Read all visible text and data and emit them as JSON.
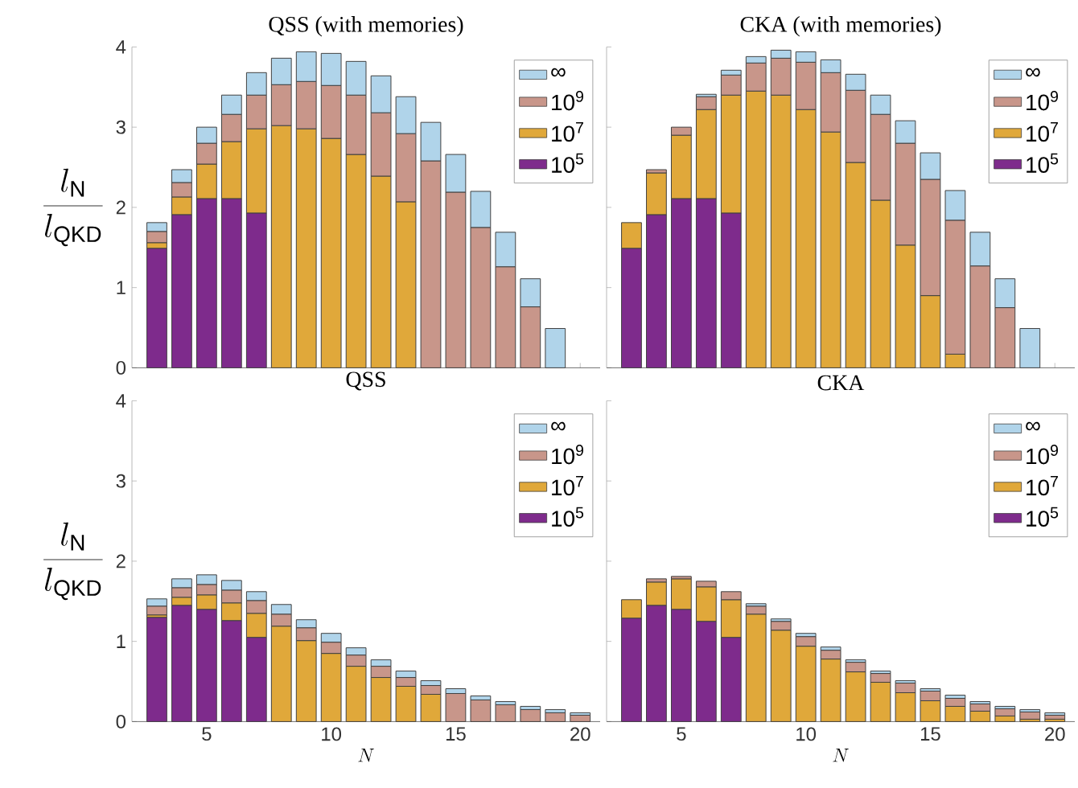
{
  "chart_data": [
    {
      "type": "bar",
      "stacked": true,
      "title": "QSS (with memories)",
      "ylabel": "\\frac{l_{\\mathrm{N}}}{l_{\\mathrm{QKD}}}",
      "x": [
        3,
        4,
        5,
        6,
        7,
        8,
        9,
        10,
        11,
        12,
        13,
        14,
        15,
        16,
        17,
        18,
        19
      ],
      "xlim": [
        2,
        20.8
      ],
      "ylim": [
        0,
        4
      ],
      "xticks": [
        5,
        10,
        15,
        20
      ],
      "yticks": [
        0,
        1,
        2,
        3,
        4
      ],
      "legend": "top right",
      "tick_labels": "y",
      "series": [
        {
          "name": "10$^{5}$",
          "color": "#7e2b8c",
          "values": [
            1.49,
            1.91,
            2.11,
            2.11,
            1.93,
            null,
            null,
            null,
            null,
            null,
            null,
            null,
            null,
            null,
            null,
            null,
            null
          ]
        },
        {
          "name": "10$^{7}$",
          "color": "#e0a83a",
          "values": [
            0.07,
            0.22,
            0.43,
            0.71,
            1.05,
            3.02,
            2.98,
            2.86,
            2.66,
            2.39,
            2.07,
            null,
            null,
            null,
            null,
            null,
            null
          ]
        },
        {
          "name": "10$^{9}$",
          "color": "#c8968a",
          "values": [
            0.14,
            0.18,
            0.26,
            0.34,
            0.42,
            0.51,
            0.59,
            0.66,
            0.74,
            0.79,
            0.85,
            2.58,
            2.19,
            1.75,
            1.26,
            0.76,
            null
          ]
        },
        {
          "name": "∞",
          "color": "#b0d4ea",
          "values": [
            0.11,
            0.16,
            0.2,
            0.24,
            0.28,
            0.33,
            0.37,
            0.4,
            0.42,
            0.46,
            0.46,
            0.48,
            0.47,
            0.45,
            0.43,
            0.35,
            0.49
          ]
        }
      ]
    },
    {
      "type": "bar",
      "stacked": true,
      "title": "CKA (with memories)",
      "x": [
        3,
        4,
        5,
        6,
        7,
        8,
        9,
        10,
        11,
        12,
        13,
        14,
        15,
        16,
        17,
        18,
        19
      ],
      "xlim": [
        2,
        20.8
      ],
      "ylim": [
        0,
        4
      ],
      "xticks": [
        5,
        10,
        15,
        20
      ],
      "yticks": [
        0,
        1,
        2,
        3,
        4
      ],
      "legend": "top right",
      "tick_labels": false,
      "series": [
        {
          "name": "10$^{5}$",
          "color": "#7e2b8c",
          "values": [
            1.49,
            1.91,
            2.11,
            2.11,
            1.93,
            null,
            null,
            null,
            null,
            null,
            null,
            null,
            null,
            null,
            null,
            null,
            null
          ]
        },
        {
          "name": "10$^{7}$",
          "color": "#e0a83a",
          "values": [
            0.32,
            0.52,
            0.79,
            1.11,
            1.47,
            3.45,
            3.4,
            3.22,
            2.94,
            2.56,
            2.09,
            1.53,
            0.9,
            0.17,
            null,
            null,
            null
          ]
        },
        {
          "name": "10$^{9}$",
          "color": "#c8968a",
          "values": [
            null,
            0.04,
            0.1,
            0.16,
            0.25,
            0.35,
            0.46,
            0.59,
            0.74,
            0.9,
            1.07,
            1.27,
            1.45,
            1.67,
            1.27,
            0.75,
            null
          ]
        },
        {
          "name": "∞",
          "color": "#b0d4ea",
          "values": [
            null,
            null,
            null,
            0.03,
            0.06,
            0.08,
            0.1,
            0.13,
            0.16,
            0.2,
            0.24,
            0.28,
            0.33,
            0.37,
            0.42,
            0.36,
            0.49
          ]
        }
      ]
    },
    {
      "type": "bar",
      "stacked": true,
      "title": "QSS",
      "xlabel": "N",
      "ylabel": "\\frac{l_{\\mathrm{N}}}{l_{\\mathrm{QKD}}}",
      "x": [
        3,
        4,
        5,
        6,
        7,
        8,
        9,
        10,
        11,
        12,
        13,
        14,
        15,
        16,
        17,
        18,
        19,
        20
      ],
      "xlim": [
        2,
        20.8
      ],
      "ylim": [
        0,
        4
      ],
      "xticks": [
        5,
        10,
        15,
        20
      ],
      "yticks": [
        0,
        1,
        2,
        3,
        4
      ],
      "legend": "top right",
      "series": [
        {
          "name": "10$^{5}$",
          "color": "#7e2b8c",
          "values": [
            1.3,
            1.45,
            1.4,
            1.26,
            1.05,
            null,
            null,
            null,
            null,
            null,
            null,
            null,
            null,
            null,
            null,
            null,
            null,
            null
          ]
        },
        {
          "name": "10$^{7}$",
          "color": "#e0a83a",
          "values": [
            0.03,
            0.1,
            0.18,
            0.22,
            0.3,
            1.19,
            1.01,
            0.85,
            0.69,
            0.55,
            0.44,
            0.34,
            null,
            null,
            null,
            null,
            null,
            null
          ]
        },
        {
          "name": "10$^{9}$",
          "color": "#c8968a",
          "values": [
            0.11,
            0.12,
            0.13,
            0.16,
            0.16,
            0.15,
            0.16,
            0.14,
            0.14,
            0.14,
            0.11,
            0.11,
            0.35,
            0.27,
            0.21,
            0.15,
            0.11,
            0.08
          ]
        },
        {
          "name": "∞",
          "color": "#b0d4ea",
          "values": [
            0.09,
            0.11,
            0.12,
            0.12,
            0.11,
            0.12,
            0.1,
            0.11,
            0.09,
            0.08,
            0.08,
            0.06,
            0.06,
            0.05,
            0.04,
            0.04,
            0.04,
            0.03
          ]
        }
      ]
    },
    {
      "type": "bar",
      "stacked": true,
      "title": "CKA",
      "xlabel": "N",
      "x": [
        3,
        4,
        5,
        6,
        7,
        8,
        9,
        10,
        11,
        12,
        13,
        14,
        15,
        16,
        17,
        18,
        19,
        20
      ],
      "xlim": [
        2,
        20.8
      ],
      "ylim": [
        0,
        4
      ],
      "xticks": [
        5,
        10,
        15,
        20
      ],
      "yticks": [
        0,
        1,
        2,
        3,
        4
      ],
      "legend": "top right",
      "tick_labels": "x",
      "series": [
        {
          "name": "10$^{5}$",
          "color": "#7e2b8c",
          "values": [
            1.29,
            1.45,
            1.4,
            1.25,
            1.05,
            null,
            null,
            null,
            null,
            null,
            null,
            null,
            null,
            null,
            null,
            null,
            null,
            null
          ]
        },
        {
          "name": "10$^{7}$",
          "color": "#e0a83a",
          "values": [
            0.23,
            0.29,
            0.38,
            0.43,
            0.47,
            1.34,
            1.14,
            0.94,
            0.78,
            0.62,
            0.49,
            0.36,
            0.26,
            0.19,
            0.13,
            0.07,
            0.03,
            0.03
          ]
        },
        {
          "name": "10$^{9}$",
          "color": "#c8968a",
          "values": [
            null,
            0.04,
            0.03,
            0.07,
            0.1,
            0.1,
            0.11,
            0.12,
            0.11,
            0.12,
            0.11,
            0.12,
            0.12,
            0.1,
            0.09,
            0.09,
            0.09,
            0.05
          ]
        },
        {
          "name": "∞",
          "color": "#b0d4ea",
          "values": [
            null,
            null,
            null,
            null,
            null,
            0.03,
            0.03,
            0.04,
            0.04,
            0.03,
            0.03,
            0.03,
            0.03,
            0.04,
            0.03,
            0.03,
            0.03,
            0.03
          ]
        }
      ]
    }
  ]
}
